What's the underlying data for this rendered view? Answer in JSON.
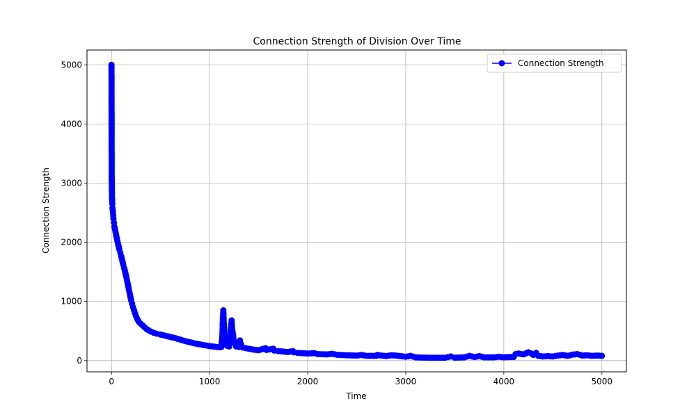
{
  "chart_data": {
    "type": "line",
    "title": "Connection Strength of Division Over Time",
    "xlabel": "Time",
    "ylabel": "Connection Strength",
    "xlim": [
      -250,
      5250
    ],
    "ylim": [
      -190,
      5250
    ],
    "xticks": [
      0,
      1000,
      2000,
      3000,
      4000,
      5000
    ],
    "yticks": [
      0,
      1000,
      2000,
      3000,
      4000,
      5000
    ],
    "grid": true,
    "legend": {
      "placement": "top-right"
    },
    "series": [
      {
        "name": "Connection Strength",
        "color": "#0000ff",
        "marker": "circle",
        "points": [
          [
            0,
            5000
          ],
          [
            2,
            3160
          ],
          [
            5,
            2760
          ],
          [
            8,
            2650
          ],
          [
            10,
            2580
          ],
          [
            15,
            2500
          ],
          [
            20,
            2400
          ],
          [
            25,
            2330
          ],
          [
            30,
            2260
          ],
          [
            40,
            2180
          ],
          [
            50,
            2100
          ],
          [
            60,
            2020
          ],
          [
            70,
            1950
          ],
          [
            80,
            1880
          ],
          [
            90,
            1820
          ],
          [
            100,
            1760
          ],
          [
            110,
            1690
          ],
          [
            120,
            1620
          ],
          [
            130,
            1560
          ],
          [
            140,
            1490
          ],
          [
            150,
            1420
          ],
          [
            160,
            1340
          ],
          [
            170,
            1260
          ],
          [
            180,
            1180
          ],
          [
            190,
            1100
          ],
          [
            200,
            1020
          ],
          [
            210,
            960
          ],
          [
            220,
            900
          ],
          [
            230,
            850
          ],
          [
            240,
            800
          ],
          [
            250,
            750
          ],
          [
            260,
            710
          ],
          [
            270,
            680
          ],
          [
            280,
            650
          ],
          [
            300,
            620
          ],
          [
            320,
            590
          ],
          [
            340,
            560
          ],
          [
            360,
            530
          ],
          [
            380,
            510
          ],
          [
            400,
            490
          ],
          [
            430,
            470
          ],
          [
            460,
            455
          ],
          [
            500,
            440
          ],
          [
            550,
            420
          ],
          [
            600,
            400
          ],
          [
            650,
            380
          ],
          [
            700,
            355
          ],
          [
            750,
            330
          ],
          [
            800,
            310
          ],
          [
            850,
            290
          ],
          [
            900,
            275
          ],
          [
            950,
            260
          ],
          [
            1000,
            245
          ],
          [
            1050,
            235
          ],
          [
            1100,
            225
          ],
          [
            1120,
            230
          ],
          [
            1130,
            420
          ],
          [
            1135,
            700
          ],
          [
            1140,
            850
          ],
          [
            1145,
            640
          ],
          [
            1150,
            480
          ],
          [
            1155,
            350
          ],
          [
            1160,
            300
          ],
          [
            1180,
            250
          ],
          [
            1200,
            240
          ],
          [
            1210,
            380
          ],
          [
            1220,
            600
          ],
          [
            1225,
            680
          ],
          [
            1230,
            540
          ],
          [
            1240,
            420
          ],
          [
            1250,
            300
          ],
          [
            1270,
            240
          ],
          [
            1300,
            230
          ],
          [
            1310,
            340
          ],
          [
            1320,
            280
          ],
          [
            1340,
            220
          ],
          [
            1400,
            200
          ],
          [
            1450,
            185
          ],
          [
            1500,
            175
          ],
          [
            1570,
            210
          ],
          [
            1580,
            180
          ],
          [
            1650,
            200
          ],
          [
            1660,
            170
          ],
          [
            1700,
            160
          ],
          [
            1800,
            145
          ],
          [
            1850,
            160
          ],
          [
            1860,
            140
          ],
          [
            1900,
            130
          ],
          [
            2000,
            120
          ],
          [
            2070,
            125
          ],
          [
            2100,
            110
          ],
          [
            2200,
            105
          ],
          [
            2250,
            115
          ],
          [
            2300,
            98
          ],
          [
            2400,
            90
          ],
          [
            2500,
            85
          ],
          [
            2550,
            95
          ],
          [
            2600,
            80
          ],
          [
            2700,
            80
          ],
          [
            2710,
            95
          ],
          [
            2800,
            75
          ],
          [
            2850,
            90
          ],
          [
            2900,
            85
          ],
          [
            3000,
            65
          ],
          [
            3050,
            80
          ],
          [
            3100,
            55
          ],
          [
            3200,
            50
          ],
          [
            3300,
            48
          ],
          [
            3400,
            48
          ],
          [
            3460,
            70
          ],
          [
            3500,
            50
          ],
          [
            3600,
            55
          ],
          [
            3650,
            80
          ],
          [
            3700,
            60
          ],
          [
            3750,
            75
          ],
          [
            3800,
            55
          ],
          [
            3900,
            55
          ],
          [
            3950,
            65
          ],
          [
            4000,
            55
          ],
          [
            4050,
            60
          ],
          [
            4100,
            60
          ],
          [
            4120,
            110
          ],
          [
            4150,
            120
          ],
          [
            4200,
            105
          ],
          [
            4250,
            140
          ],
          [
            4280,
            120
          ],
          [
            4300,
            95
          ],
          [
            4330,
            130
          ],
          [
            4350,
            80
          ],
          [
            4400,
            70
          ],
          [
            4450,
            75
          ],
          [
            4500,
            70
          ],
          [
            4550,
            85
          ],
          [
            4600,
            95
          ],
          [
            4650,
            80
          ],
          [
            4700,
            100
          ],
          [
            4750,
            110
          ],
          [
            4800,
            85
          ],
          [
            4850,
            90
          ],
          [
            4900,
            80
          ],
          [
            4950,
            85
          ],
          [
            5000,
            80
          ]
        ]
      }
    ]
  }
}
